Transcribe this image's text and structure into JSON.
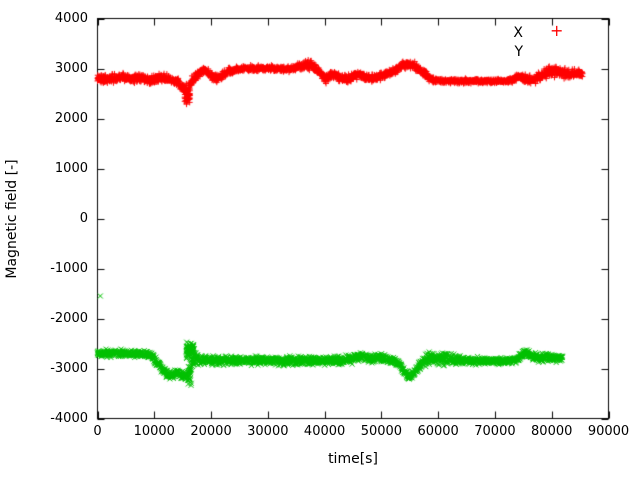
{
  "figure": {
    "background": "#ffffff",
    "border_color": "#000000",
    "text_color": "#000000"
  },
  "chart_data": {
    "type": "scatter",
    "title": "",
    "xlabel": "time[s]",
    "ylabel": "Magnetic field [-]",
    "xlim": [
      0,
      90000
    ],
    "ylim": [
      -4000,
      4000
    ],
    "grid": false,
    "legend_position": "top-right-inside",
    "xticks": {
      "values": [
        0,
        10000,
        20000,
        30000,
        40000,
        50000,
        60000,
        70000,
        80000,
        90000
      ],
      "labels": [
        "0",
        "10000",
        "20000",
        "30000",
        "40000",
        "50000",
        "60000",
        "70000",
        "80000",
        "90000"
      ]
    },
    "yticks": {
      "values": [
        -4000,
        -3000,
        -2000,
        -1000,
        0,
        1000,
        2000,
        3000,
        4000
      ],
      "labels": [
        "-4000",
        "-3000",
        "-2000",
        "-1000",
        "0",
        "1000",
        "2000",
        "3000",
        "4000"
      ]
    },
    "legend": [
      {
        "label": "X",
        "marker": "+",
        "color": "#ff0000",
        "marker_visible": true
      },
      {
        "label": "Y",
        "marker": "×",
        "color": "#00c000",
        "marker_visible": false
      }
    ],
    "series": [
      {
        "name": "X",
        "color": "#ff0000",
        "marker": "+",
        "t_range": [
          0,
          85400
        ],
        "envelope": [
          [
            0,
            2800,
            110
          ],
          [
            2000,
            2790,
            110
          ],
          [
            4000,
            2830,
            110
          ],
          [
            6000,
            2790,
            115
          ],
          [
            8000,
            2810,
            110
          ],
          [
            9500,
            2760,
            120
          ],
          [
            11000,
            2820,
            110
          ],
          [
            12500,
            2790,
            115
          ],
          [
            14000,
            2740,
            130
          ],
          [
            15000,
            2640,
            160
          ],
          [
            15800,
            2560,
            180
          ],
          [
            16500,
            2700,
            150
          ],
          [
            17400,
            2850,
            120
          ],
          [
            18800,
            2980,
            100
          ],
          [
            20000,
            2860,
            110
          ],
          [
            21000,
            2800,
            110
          ],
          [
            22000,
            2860,
            105
          ],
          [
            23200,
            2940,
            95
          ],
          [
            24500,
            2980,
            85
          ],
          [
            26000,
            3000,
            75
          ],
          [
            30000,
            3000,
            70
          ],
          [
            34000,
            2990,
            80
          ],
          [
            35500,
            3040,
            110
          ],
          [
            37000,
            3070,
            130
          ],
          [
            38500,
            3000,
            130
          ],
          [
            40200,
            2790,
            120
          ],
          [
            41500,
            2900,
            110
          ],
          [
            42700,
            2810,
            110
          ],
          [
            44000,
            2800,
            110
          ],
          [
            46000,
            2880,
            100
          ],
          [
            47500,
            2810,
            105
          ],
          [
            49000,
            2810,
            105
          ],
          [
            50500,
            2870,
            105
          ],
          [
            52000,
            2940,
            105
          ],
          [
            53500,
            3050,
            105
          ],
          [
            54800,
            3090,
            105
          ],
          [
            56000,
            3040,
            110
          ],
          [
            57500,
            2890,
            110
          ],
          [
            59000,
            2780,
            90
          ],
          [
            60500,
            2750,
            65
          ],
          [
            64000,
            2750,
            60
          ],
          [
            68000,
            2750,
            60
          ],
          [
            71500,
            2750,
            60
          ],
          [
            73000,
            2770,
            75
          ],
          [
            74300,
            2850,
            95
          ],
          [
            75500,
            2790,
            105
          ],
          [
            76800,
            2770,
            110
          ],
          [
            78200,
            2860,
            125
          ],
          [
            79600,
            2940,
            145
          ],
          [
            80800,
            2950,
            145
          ],
          [
            82000,
            2890,
            135
          ],
          [
            83200,
            2890,
            115
          ],
          [
            84300,
            2910,
            100
          ],
          [
            85400,
            2900,
            90
          ]
        ],
        "clusters": [
          [
            15800,
            450,
            2420,
            150,
            40
          ]
        ],
        "outliers": [
          [
            84000,
            2990
          ]
        ]
      },
      {
        "name": "Y",
        "color": "#00c000",
        "marker": "x",
        "t_range": [
          0,
          81900
        ],
        "envelope": [
          [
            0,
            -2700,
            90
          ],
          [
            2000,
            -2700,
            90
          ],
          [
            4000,
            -2690,
            95
          ],
          [
            6000,
            -2700,
            95
          ],
          [
            8000,
            -2710,
            100
          ],
          [
            9300,
            -2730,
            105
          ],
          [
            10300,
            -2850,
            115
          ],
          [
            11300,
            -3000,
            120
          ],
          [
            12300,
            -3110,
            115
          ],
          [
            13200,
            -3150,
            105
          ],
          [
            14000,
            -3080,
            110
          ],
          [
            14800,
            -3130,
            110
          ],
          [
            15600,
            -3170,
            115
          ],
          [
            16300,
            -3000,
            200
          ],
          [
            17200,
            -2800,
            150
          ],
          [
            18400,
            -2830,
            120
          ],
          [
            20000,
            -2840,
            115
          ],
          [
            24000,
            -2840,
            115
          ],
          [
            28000,
            -2830,
            115
          ],
          [
            32000,
            -2850,
            120
          ],
          [
            36000,
            -2840,
            115
          ],
          [
            40000,
            -2840,
            115
          ],
          [
            43000,
            -2840,
            120
          ],
          [
            45000,
            -2800,
            120
          ],
          [
            46500,
            -2760,
            120
          ],
          [
            48000,
            -2810,
            115
          ],
          [
            50000,
            -2780,
            115
          ],
          [
            52000,
            -2840,
            110
          ],
          [
            53300,
            -2930,
            110
          ],
          [
            54200,
            -3100,
            100
          ],
          [
            55000,
            -3170,
            95
          ],
          [
            55800,
            -3090,
            100
          ],
          [
            56700,
            -2950,
            115
          ],
          [
            57600,
            -2830,
            140
          ],
          [
            58600,
            -2790,
            165
          ],
          [
            60000,
            -2810,
            175
          ],
          [
            61500,
            -2800,
            165
          ],
          [
            63000,
            -2830,
            145
          ],
          [
            64500,
            -2840,
            115
          ],
          [
            66000,
            -2850,
            105
          ],
          [
            70000,
            -2850,
            100
          ],
          [
            72500,
            -2840,
            100
          ],
          [
            74200,
            -2800,
            110
          ],
          [
            75300,
            -2670,
            120
          ],
          [
            76400,
            -2750,
            120
          ],
          [
            77600,
            -2790,
            120
          ],
          [
            79000,
            -2770,
            120
          ],
          [
            80500,
            -2780,
            120
          ],
          [
            81900,
            -2790,
            110
          ]
        ],
        "clusters": [
          [
            16350,
            700,
            -2640,
            200,
            80
          ],
          [
            16100,
            450,
            -3230,
            120,
            12
          ]
        ],
        "outliers": [
          [
            500,
            -1550
          ]
        ]
      }
    ]
  }
}
